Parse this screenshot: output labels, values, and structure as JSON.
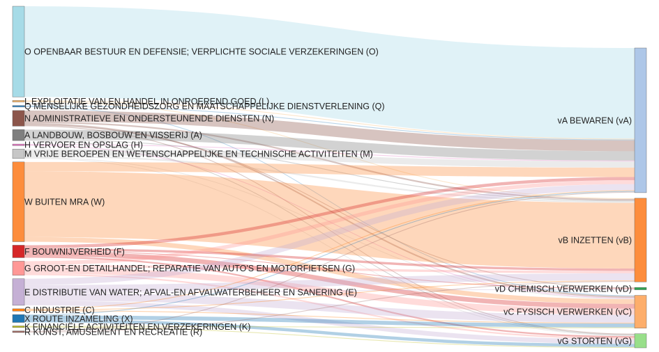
{
  "chart_data": {
    "type": "sankey",
    "unit": "",
    "sources": [
      {
        "id": "O",
        "label": "O OPENBAAR BESTUUR EN DEFENSIE; VERPLICHTE SOCIALE VERZEKERINGEN (O)",
        "color": "#a6dbe7",
        "value": 116,
        "flows": {
          "vA": 116
        }
      },
      {
        "id": "L",
        "label": "L EXPLOITATIE VAN EN HANDEL IN ONROEREND GOED (L)",
        "color": "#f6b66b",
        "value": 2,
        "flows": {
          "vA": 1,
          "vB": 1
        }
      },
      {
        "id": "Q",
        "label": "Q MENSELIJKE GEZONDHEIDSZORG EN MAATSCHAPPELIJKE DIENSTVERLENING (Q)",
        "color": "#3a86c1",
        "value": 2,
        "flows": {
          "vA": 1,
          "vC": 1
        }
      },
      {
        "id": "N",
        "label": "N ADMINISTRATIEVE EN ONDERSTEUNENDE DIENSTEN (N)",
        "color": "#8c564b",
        "value": 20,
        "flows": {
          "vA": 14,
          "vB": 2,
          "vC": 2,
          "vD": 1,
          "vG": 1
        }
      },
      {
        "id": "A",
        "label": "A LANDBOUW, BOSBOUW EN VISSERIJ (A)",
        "color": "#7f7f7f",
        "value": 14,
        "flows": {
          "vA": 12,
          "vB": 1,
          "vG": 1
        }
      },
      {
        "id": "H",
        "label": "H VERVOER EN OPSLAG (H)",
        "color": "#e377c2",
        "value": 2,
        "flows": {
          "vA": 1,
          "vC": 1
        }
      },
      {
        "id": "M",
        "label": "M VRIJE BEROEPEN EN WETENSCHAPPELIJKE EN TECHNISCHE ACTIVITEITEN (M)",
        "color": "#c7c7c7",
        "value": 12,
        "flows": {
          "vA": 8,
          "vB": 2,
          "vC": 1,
          "vG": 1
        }
      },
      {
        "id": "W",
        "label": "W BUITEN MRA (W)",
        "color": "#fd8d3c",
        "value": 102,
        "flows": {
          "vA": 12,
          "vB": 84,
          "vC": 6
        }
      },
      {
        "id": "F",
        "label": "F BOUWNIJVERHEID (F)",
        "color": "#d62728",
        "value": 16,
        "flows": {
          "vA": 4,
          "vB": 3,
          "vD": 1,
          "vC": 6,
          "vG": 2
        }
      },
      {
        "id": "G",
        "label": "G GROOT-EN DETAILHANDEL; REPARATIE VAN AUTO'S EN MOTORFIETSEN (G)",
        "color": "#ff9896",
        "value": 18,
        "flows": {
          "vA": 5,
          "vB": 3,
          "vC": 8,
          "vG": 2
        }
      },
      {
        "id": "E",
        "label": "E DISTRIBUTIE VAN WATER; AFVAL-EN AFVALWATERBEHEER EN SANERING (E)",
        "color": "#c5b0d5",
        "value": 34,
        "flows": {
          "vA": 8,
          "vB": 9,
          "vD": 1,
          "vC": 10,
          "vG": 6
        }
      },
      {
        "id": "C",
        "label": "C INDUSTRIE (C)",
        "color": "#ff7f0e",
        "value": 3,
        "flows": {
          "vA": 1,
          "vB": 1,
          "vC": 1
        }
      },
      {
        "id": "X",
        "label": "X ROUTE INZAMELING (X)",
        "color": "#1f77b4",
        "value": 10,
        "flows": {
          "vA": 1,
          "vC": 5,
          "vG": 4
        }
      },
      {
        "id": "K",
        "label": "K FINANCIËLE ACTIVITEITEN EN VERZEKERINGEN (K)",
        "color": "#bcbd22",
        "value": 2,
        "flows": {
          "vC": 1,
          "vG": 1
        }
      },
      {
        "id": "R",
        "label": "R KUNST, AMUSEMENT EN RECREATIE (R)",
        "color": "#9e6b64",
        "value": 2,
        "flows": {
          "vA": 1,
          "vB": 1
        }
      }
    ],
    "targets": [
      {
        "id": "vA",
        "label": "vA BEWAREN (vA)",
        "color": "#aec7e8",
        "value": 185
      },
      {
        "id": "vB",
        "label": "vB INZETTEN (vB)",
        "color": "#fd8d3c",
        "value": 107
      },
      {
        "id": "vD",
        "label": "vD CHEMISCH VERWERKEN (vD)",
        "color": "#31a354",
        "value": 3
      },
      {
        "id": "vC",
        "label": "vC FYSISCH VERWERKEN (vC)",
        "color": "#fdae6b",
        "value": 42
      },
      {
        "id": "vG",
        "label": "vG STORTEN (vG)",
        "color": "#98df8a",
        "value": 18
      }
    ]
  }
}
